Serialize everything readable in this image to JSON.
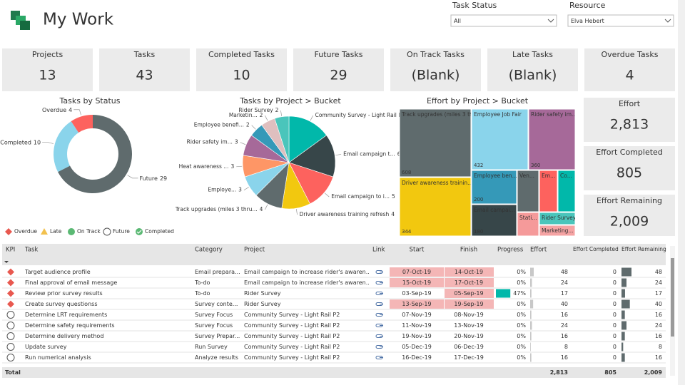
{
  "header": {
    "title": "My Work"
  },
  "filters": [
    {
      "label": "Task Status",
      "value": "All"
    },
    {
      "label": "Resource",
      "value": "Elva Hebert"
    }
  ],
  "kpis": [
    {
      "label": "Projects",
      "value": "13"
    },
    {
      "label": "Tasks",
      "value": "43"
    },
    {
      "label": "Completed Tasks",
      "value": "10"
    },
    {
      "label": "Future Tasks",
      "value": "29"
    },
    {
      "label": "On Track Tasks",
      "value": "(Blank)"
    },
    {
      "label": "Late Tasks",
      "value": "(Blank)"
    },
    {
      "label": "Overdue Tasks",
      "value": "4"
    }
  ],
  "donut": {
    "type": "donut",
    "title": "Tasks by Status",
    "slices": [
      {
        "name": "Future",
        "value": 29,
        "color": "#5f6b6d"
      },
      {
        "name": "Completed",
        "value": 10,
        "color": "#8ad4eb"
      },
      {
        "name": "Overdue",
        "value": 4,
        "color": "#fd625e"
      }
    ],
    "legend": [
      {
        "name": "Overdue",
        "shape": "diamond",
        "color": "#e8584f"
      },
      {
        "name": "Late",
        "shape": "triangle",
        "color": "#f2c14e"
      },
      {
        "name": "On Track",
        "shape": "circle",
        "color": "#5bb974"
      },
      {
        "name": "Future",
        "shape": "open",
        "color": "#555555"
      },
      {
        "name": "Completed",
        "shape": "check",
        "color": "#5bb974"
      }
    ]
  },
  "pie": {
    "type": "pie",
    "title": "Tasks by Project > Bucket",
    "slices": [
      {
        "name": "Community Survey - Light Rail P2",
        "value": 6,
        "color": "#01b8aa"
      },
      {
        "name": "Email campaign t...",
        "value": 6,
        "color": "#374649"
      },
      {
        "name": "Email campaign to i...",
        "value": 5,
        "color": "#fd625e"
      },
      {
        "name": "Driver awareness training refresh",
        "value": 4,
        "color": "#f2c80f"
      },
      {
        "name": "Track upgrades (miles 3 thru...",
        "value": 4,
        "color": "#5f6b6d"
      },
      {
        "name": "Employe...",
        "value": 3,
        "color": "#8ad4eb"
      },
      {
        "name": "Heat awareness ...",
        "value": 3,
        "color": "#fe9666"
      },
      {
        "name": "Rider safety im...",
        "value": 3,
        "color": "#a66999"
      },
      {
        "name": "Employee benefi...",
        "value": 2,
        "color": "#3599b8"
      },
      {
        "name": "Marketin...",
        "value": 2,
        "color": "#dfbfbf"
      },
      {
        "name": "Rider Survey",
        "value": 2,
        "color": "#4ac5bb"
      }
    ]
  },
  "treemap": {
    "type": "treemap",
    "title": "Effort by Project > Bucket",
    "tiles": [
      {
        "name": "Track upgrades (miles 3 thr...",
        "value": 608,
        "color": "#5f6b6d",
        "value_shown": true
      },
      {
        "name": "Employee Job Fair",
        "value": 432,
        "color": "#8ad4eb",
        "value_shown": true
      },
      {
        "name": "Rider safety im...",
        "value": 360,
        "color": "#a66999",
        "value_shown": true
      },
      {
        "name": "Driver awareness trainin...",
        "value": 344,
        "color": "#f2c80f",
        "value_shown": true
      },
      {
        "name": "Employee ben...",
        "value": 200,
        "color": "#3599b8",
        "value_shown": true
      },
      {
        "name": "Email campai...",
        "value": 180,
        "color": "#374649",
        "value_shown": true
      },
      {
        "name": "Ven...",
        "value": 120,
        "color": "#5f6b6d",
        "value_shown": false
      },
      {
        "name": "Em...",
        "value": 100,
        "color": "#fd625e",
        "value_shown": false
      },
      {
        "name": "Co...",
        "value": 100,
        "color": "#01b8aa",
        "value_shown": false
      },
      {
        "name": "Stati...",
        "value": 58,
        "color": "#f59a9a",
        "value_shown": false
      },
      {
        "name": "Rider Survey",
        "value": 62,
        "color": "#4ac5bb",
        "value_shown": false
      },
      {
        "name": "Marketing...",
        "value": 55,
        "color": "#f5a3a3",
        "value_shown": false
      }
    ]
  },
  "effort_kpis": [
    {
      "label": "Effort",
      "value": "2,813"
    },
    {
      "label": "Effort Completed",
      "value": "805"
    },
    {
      "label": "Effort Remaining",
      "value": "2,009"
    }
  ],
  "table": {
    "columns": [
      "KPI",
      "Task",
      "Category",
      "Project",
      "Link",
      "Start",
      "Finish",
      "Progress",
      "Effort",
      "Effort Completed",
      "Effort Remaining"
    ],
    "rows": [
      {
        "kpi": "Overdue",
        "task": "Target audience profile",
        "category": "Email prepara...",
        "project": "Email campaign to increase rider's awaren...",
        "start": "07-Oct-19",
        "finish": "14-Oct-19",
        "start_late": true,
        "finish_late": true,
        "progress": {
          "value": 0,
          "label": "0%"
        },
        "effort": 48,
        "completed": 0,
        "remaining": 48
      },
      {
        "kpi": "Overdue",
        "task": "Final approval of email message",
        "category": "To-do",
        "project": "Email campaign to increase rider's awaren...",
        "start": "15-Oct-19",
        "finish": "17-Oct-19",
        "start_late": true,
        "finish_late": true,
        "progress": {
          "value": 0,
          "label": "0%"
        },
        "effort": 24,
        "completed": 0,
        "remaining": 24
      },
      {
        "kpi": "Overdue",
        "task": "Review prior survey results",
        "category": "To-do",
        "project": "Rider Survey",
        "start": "03-Sep-19",
        "finish": "05-Sep-19",
        "start_late": false,
        "finish_late": true,
        "progress": {
          "value": 47,
          "label": "47%"
        },
        "effort": 17,
        "completed": 0,
        "remaining": 17
      },
      {
        "kpi": "Overdue",
        "task": "Create survey questionss",
        "category": "Survey conte...",
        "project": "Rider Survey",
        "start": "13-Sep-19",
        "finish": "19-Sep-19",
        "start_late": true,
        "finish_late": true,
        "progress": {
          "value": 0,
          "label": "0%"
        },
        "effort": 40,
        "completed": 0,
        "remaining": 40
      },
      {
        "kpi": "Future",
        "task": "Determine LRT requirements",
        "category": "Survey Focus",
        "project": "Community Survey - Light Rail P2",
        "start": "07-Nov-19",
        "finish": "08-Nov-19",
        "start_late": false,
        "finish_late": false,
        "progress": {
          "value": 0,
          "label": "0%"
        },
        "effort": 16,
        "completed": 0,
        "remaining": 16
      },
      {
        "kpi": "Future",
        "task": "Determine safety requirements",
        "category": "Survey Focus",
        "project": "Community Survey - Light Rail P2",
        "start": "11-Nov-19",
        "finish": "13-Nov-19",
        "start_late": false,
        "finish_late": false,
        "progress": {
          "value": 0,
          "label": "0%"
        },
        "effort": 24,
        "completed": 0,
        "remaining": 24
      },
      {
        "kpi": "Future",
        "task": "Determine delivery method",
        "category": "Survey Prepar...",
        "project": "Community Survey - Light Rail P2",
        "start": "19-Nov-19",
        "finish": "20-Nov-19",
        "start_late": false,
        "finish_late": false,
        "progress": {
          "value": 0,
          "label": "0%"
        },
        "effort": 16,
        "completed": 0,
        "remaining": 16
      },
      {
        "kpi": "Future",
        "task": "Update survey",
        "category": "Run Survey",
        "project": "Community Survey - Light Rail P2",
        "start": "05-Dec-19",
        "finish": "06-Dec-19",
        "start_late": false,
        "finish_late": false,
        "progress": {
          "value": 0,
          "label": "0%"
        },
        "effort": 8,
        "completed": 0,
        "remaining": 8
      },
      {
        "kpi": "Future",
        "task": "Run numerical analysis",
        "category": "Analyze results",
        "project": "Community Survey - Light Rail P2",
        "start": "16-Dec-19",
        "finish": "17-Dec-19",
        "start_late": false,
        "finish_late": false,
        "progress": {
          "value": 0,
          "label": "0%"
        },
        "effort": 16,
        "completed": 0,
        "remaining": 16
      }
    ],
    "total": {
      "label": "Total",
      "effort": "2,813",
      "completed": "805",
      "remaining": "2,009"
    }
  }
}
